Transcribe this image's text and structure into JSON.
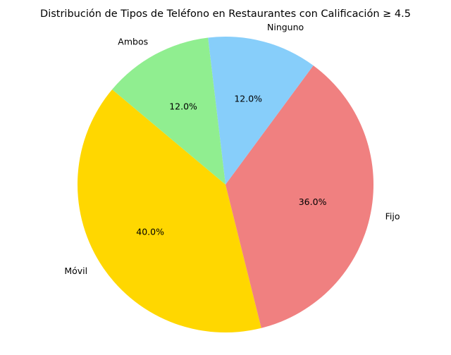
{
  "chart_data": {
    "type": "pie",
    "title": "Distribución de Tipos de Teléfono en Restaurantes con Calificación ≥ 4.5",
    "start_angle_deg": 140,
    "direction": "counterclockwise",
    "slices": [
      {
        "label": "Móvil",
        "value": 40.0,
        "pct_label": "40.0%",
        "color": "#FFD700"
      },
      {
        "label": "Fijo",
        "value": 36.0,
        "pct_label": "36.0%",
        "color": "#F08080"
      },
      {
        "label": "Ninguno",
        "value": 12.0,
        "pct_label": "12.0%",
        "color": "#87CEFA"
      },
      {
        "label": "Ambos",
        "value": 12.0,
        "pct_label": "12.0%",
        "color": "#90EE90"
      }
    ]
  }
}
